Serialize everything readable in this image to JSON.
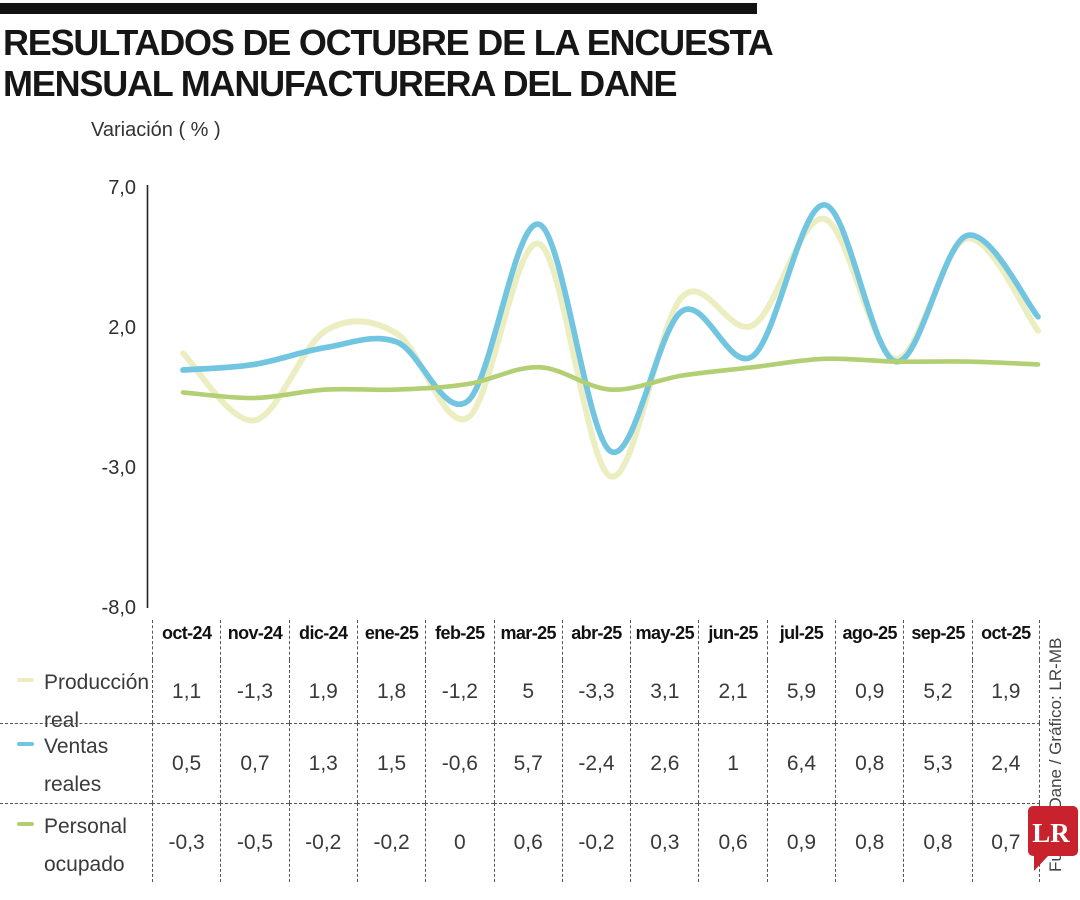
{
  "header": {
    "title_line1": "RESULTADOS DE OCTUBRE DE LA ENCUESTA",
    "title_line2": "MENSUAL MANUFACTURERA DEL DANE"
  },
  "chart_data": {
    "type": "line",
    "title": "Resultados de octubre de la encuesta mensual manufacturera del Dane",
    "ylabel": "Variación ( % )",
    "ylim": [
      -8,
      7
    ],
    "grid": false,
    "smooth": true,
    "legend_position": "table-rows-left",
    "yticks": [
      {
        "label": "7,0",
        "value": 7
      },
      {
        "label": "2,0",
        "value": 2
      },
      {
        "label": "-3,0",
        "value": -3
      },
      {
        "label": "-8,0",
        "value": -8
      }
    ],
    "categories": [
      "oct-24",
      "nov-24",
      "dic-24",
      "ene-25",
      "feb-25",
      "mar-25",
      "abr-25",
      "may-25",
      "jun-25",
      "jul-25",
      "ago-25",
      "sep-25",
      "oct-25"
    ],
    "series": [
      {
        "name": "Producción real",
        "color": "#ECEEC2",
        "values": [
          1.1,
          -1.3,
          1.9,
          1.8,
          -1.2,
          5,
          -3.3,
          3.1,
          2.1,
          5.9,
          0.9,
          5.2,
          1.9
        ],
        "display": [
          "1,1",
          "-1,3",
          "1,9",
          "1,8",
          "-1,2",
          "5",
          "-3,3",
          "3,1",
          "2,1",
          "5,9",
          "0,9",
          "5,2",
          "1,9"
        ]
      },
      {
        "name": "Ventas reales",
        "color": "#72C5E1",
        "values": [
          0.5,
          0.7,
          1.3,
          1.5,
          -0.6,
          5.7,
          -2.4,
          2.6,
          1,
          6.4,
          0.8,
          5.3,
          2.4
        ],
        "display": [
          "0,5",
          "0,7",
          "1,3",
          "1,5",
          "-0,6",
          "5,7",
          "-2,4",
          "2,6",
          "1",
          "6,4",
          "0,8",
          "5,3",
          "2,4"
        ]
      },
      {
        "name": "Personal ocupado",
        "color": "#B2CF74",
        "values": [
          -0.3,
          -0.5,
          -0.2,
          -0.2,
          0,
          0.6,
          -0.2,
          0.3,
          0.6,
          0.9,
          0.8,
          0.8,
          0.7
        ],
        "display": [
          "-0,3",
          "-0,5",
          "-0,2",
          "-0,2",
          "0",
          "0,6",
          "-0,2",
          "0,3",
          "0,6",
          "0,9",
          "0,8",
          "0,8",
          "0,7"
        ]
      }
    ]
  },
  "footer": {
    "source": "Fuente: Dane / Gráfico: LR-MB",
    "logo_text": "LR",
    "logo_color": "#C8232C"
  }
}
